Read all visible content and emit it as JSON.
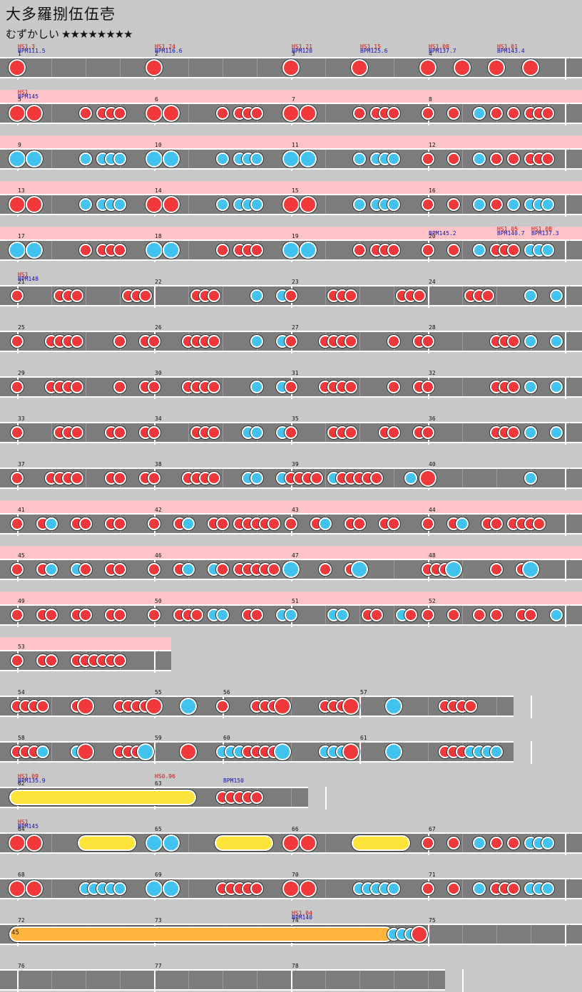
{
  "song": {
    "title": "大多羅捌伍伍壱",
    "difficulty": "むずかしい",
    "stars": "★★★★★★★★"
  },
  "colors": {
    "don": "#f0383a",
    "ka": "#41c3f0",
    "roll": "#fce43a",
    "balloon": "#ffb43c",
    "lane": "#7d7d7d",
    "gogo": "#ffc4c8",
    "bg": "#c8c8c8"
  },
  "rows": [
    {
      "gogo": false,
      "measures": [
        1,
        2,
        3,
        4
      ],
      "events": [
        {
          "beat": 0,
          "hs": "HS1.3",
          "bpm": "BPM111.5"
        },
        {
          "beat": 4,
          "hs": "HS1.24",
          "bpm": "BPM116.6"
        },
        {
          "beat": 8,
          "hs": "HS1.21",
          "bpm": "BPM120"
        },
        {
          "beat": 10,
          "hs": "HS1.15",
          "bpm": "BPM125.6"
        },
        {
          "beat": 12,
          "hs": "HS1.08",
          "bpm": "BPM137.7"
        },
        {
          "beat": 14,
          "hs": "HS1.01",
          "bpm": "BPM143.4"
        }
      ],
      "notes": "0:D 4:D 8:D 10:D 12:D 13:D 14:D 15:D"
    },
    {
      "gogo": true,
      "measures": [
        5,
        6,
        7,
        8
      ],
      "events": [
        {
          "beat": 0,
          "hs": "HS1",
          "bpm": "BPM145"
        }
      ],
      "notes": "0:D 0.5:D 2:d 2.5:d 2.75:d 3:d 4:D 4.5:D 6:d 6.5:d 6.75:d 7:d 8:D 8.5:D 10:d 10.5:d 10.75:d 11:d 12:d 12.75:d 13.5:k 14:d 14.5:d 15:d 15.25:d 15.5:d"
    },
    {
      "gogo": true,
      "measures": [
        9,
        10,
        11,
        12
      ],
      "events": [],
      "notes": "0:K 0.5:K 2:k 2.5:k 2.75:k 3:k 4:K 4.5:K 6:k 6.5:k 6.75:k 7:k 8:K 8.5:K 10:k 10.5:k 10.75:k 11:k 12:d 12.75:d 13.5:k 14:d 14.5:d 15:d 15.25:d 15.5:d"
    },
    {
      "gogo": true,
      "measures": [
        13,
        14,
        15,
        16
      ],
      "events": [],
      "notes": "0:D 0.5:D 2:k 2.5:k 2.75:k 3:k 4:D 4.5:D 6:k 6.5:k 6.75:k 7:k 8:D 8.5:D 10:k 10.5:k 10.75:k 11:k 12:d 12.75:d 13.5:k 14:d 14.5:k 15:k 15.25:k 15.5:k"
    },
    {
      "gogo": true,
      "measures": [
        17,
        18,
        19,
        20
      ],
      "events": [
        {
          "beat": 12,
          "bpm": "BPM145.2"
        },
        {
          "beat": 14,
          "hs": "HS1.05",
          "bpm": "BPM140.7"
        },
        {
          "beat": 15,
          "hs": "HS1.08",
          "bpm": "BPM137.3"
        }
      ],
      "notes": "0:K 0.5:K 2:d 2.5:d 2.75:d 3:d 4:K 4.5:K 6:d 6.5:d 6.75:d 7:d 8:K 8.5:K 10:d 10.5:d 10.75:d 11:d 12:d 12.75:d 13.5:k 14:d 14.25:d 14.5:d 15:k 15.25:k 15.5:k"
    },
    {
      "gogo": false,
      "measures": [
        21,
        22,
        23,
        24
      ],
      "events": [
        {
          "beat": 0,
          "hs": "HS1",
          "bpm": "BPM148"
        }
      ],
      "notes": "0:d 1.25:d 1.5:d 1.75:d 3.25:d 3.5:d 3.75:d 5.25:d 5.5:d 5.75:d 7:k 7.75:k 8:d 9.25:d 9.5:d 9.75:d 11.25:d 11.5:d 11.75:d 13.25:d 13.5:d 13.75:d 15:k 15.75:k"
    },
    {
      "gogo": false,
      "measures": [
        25,
        26,
        27,
        28
      ],
      "events": [],
      "notes": "0:d 1:d 1.25:d 1.5:d 1.75:d 3:d 3.75:d 4:d 5:d 5.25:d 5.5:d 5.75:d 7:k 7.75:k 8:d 9:d 9.25:d 9.5:d 9.75:d 11:d 11.75:d 12:d 14:d 14.25:d 14.5:d 15:k 15.75:k"
    },
    {
      "gogo": false,
      "measures": [
        29,
        30,
        31,
        32
      ],
      "events": [],
      "notes": "0:d 1:d 1.25:d 1.5:d 1.75:d 3:d 3.75:d 4:d 5:d 5.25:d 5.5:d 5.75:d 7:k 7.75:k 8:d 9:d 9.25:d 9.5:d 9.75:d 11:d 11.75:d 12:d 14:d 14.25:d 14.5:d 15:k 15.75:k"
    },
    {
      "gogo": false,
      "measures": [
        33,
        34,
        35,
        36
      ],
      "events": [],
      "notes": "0:d 1.25:d 1.5:d 1.75:d 2.75:d 3:d 3.75:d 4:d 5.25:d 5.5:d 5.75:d 6.75:k 7:k 7.75:k 8:d 9.25:d 9.5:d 9.75:d 10.75:d 11:d 11.75:d 12:d 14:d 14.25:d 14.5:d 15:k 15.75:k"
    },
    {
      "gogo": false,
      "measures": [
        37,
        38,
        39,
        40
      ],
      "events": [],
      "notes": "0:d 1:d 1.25:d 1.5:d 1.75:d 2.75:d 3:d 3.75:d 4:d 5:d 5.25:d 5.5:d 5.75:d 6.75:k 7:k 7.75:k 8:d 8.25:d 8.5:d 8.75:d 9.25:k 9.5:d 9.75:d 10:d 10.25:d 10.5:d 11.5:k 12:D 15:k"
    },
    {
      "gogo": true,
      "measures": [
        41,
        42,
        43,
        44
      ],
      "events": [],
      "notes": "0:d 0.75:d 1:k 1.75:d 2:d 2.75:d 3:d 4:d 4.75:d 5:k 5.75:d 6:d 6.5:d 6.75:d 7:d 7.25:d 7.5:d 8:d 8.75:d 9:k 9.75:d 10:d 10.75:d 11:d 12:d 12.75:d 13:k 13.75:d 14:d 14.5:d 14.75:d 15:d 15.25:d"
    },
    {
      "gogo": true,
      "measures": [
        45,
        46,
        47,
        48
      ],
      "events": [],
      "notes": "0:d 0.75:d 1:k 1.75:k 2:d 2.75:d 3:d 4:d 4.75:d 5:k 5.75:k 6:d 6.5:d 6.75:d 7:d 7.25:d 7.5:d 8:K 9:d 9.75:d 10:K 12:d 12.25:d 12.5:d 12.75:K 14:d 14.75:d 15:K"
    },
    {
      "gogo": true,
      "measures": [
        49,
        50,
        51,
        52
      ],
      "events": [],
      "notes": "0:d 0.75:d 1:d 1.75:d 2:d 2.75:d 3:d 4:d 4.75:d 5:d 5.25:d 5.75:k 6:k 6.75:d 7:d 7.75:k 8:k 9.25:k 9.5:k 10.25:d 10.5:d 11.25:k 11.5:d 12:d 12.75:d 13.5:d 14:d 14.75:d 15:d 15.75:k"
    },
    {
      "gogo": true,
      "measures": [
        53
      ],
      "events": [],
      "notes": "0:d 0.75:d 1:d 1.75:d 2:d 2.25:d 2.5:d 2.75:d 3:d"
    },
    {
      "gogo": false,
      "measures": [
        54,
        55,
        56,
        57
      ],
      "beats": [
        4,
        2,
        4,
        5
      ],
      "events": [],
      "notes": "0:d 0.25:d 0.5:d 0.75:d 1.75:d 2:D 3:d 3.25:d 3.5:d 3.75:d 4:D 5:K 6:d 7:d 7.25:d 7.5:d 7.75:D 9:d 9.25:d 9.5:d 9.75:D 11:K 12.5:d 12.75:d 13:d 13.25:d"
    },
    {
      "gogo": false,
      "measures": [
        58,
        59,
        60,
        61
      ],
      "beats": [
        4,
        2,
        4,
        5
      ],
      "events": [],
      "notes": "0:d 0.25:d 0.5:d 0.75:k 1.75:k 2:D 3:d 3.25:d 3.5:d 3.75:K 5:D 6:k 6.25:k 6.5:k 6.75:d 7:d 7.25:d 7.5:d 7.75:K 9:k 9.25:k 9.5:k 9.75:D 11:K 12.5:d 12.75:d 13:d 13.25:k 13.5:k 13.75:k 14:k"
    },
    {
      "gogo": false,
      "measures": [
        62,
        63
      ],
      "beats": [
        4,
        5
      ],
      "events": [
        {
          "beat": 0,
          "hs": "HS1.09",
          "bpm": "BPM135.9"
        },
        {
          "beat": 4,
          "hs": "HS0.96"
        },
        {
          "beat": 6,
          "bpm": "BPM150"
        }
      ],
      "notes": "6:d 6.25:d 6.5:d 6.75:d 7:d",
      "rolls": [
        {
          "from": 0,
          "to": 5,
          "type": "roll"
        }
      ]
    },
    {
      "gogo": false,
      "measures": [
        64,
        65,
        66,
        67
      ],
      "events": [
        {
          "beat": 0,
          "hs": "HS1",
          "bpm": "BPM145"
        }
      ],
      "notes": "0:D 0.5:D 4:K 4.5:K 8:D 8.5:D 12:d 12.75:d 13.5:k 14:d 14.5:d 15:k 15.25:k 15.5:k",
      "rolls": [
        {
          "from": 2,
          "to": 3.25,
          "type": "roll"
        },
        {
          "from": 6,
          "to": 7.25,
          "type": "roll"
        },
        {
          "from": 10,
          "to": 11.25,
          "type": "roll"
        }
      ]
    },
    {
      "gogo": false,
      "measures": [
        68,
        69,
        70,
        71
      ],
      "events": [],
      "notes": "0:D 0.5:D 2:k 2.25:k 2.5:k 2.75:k 3:k 4:K 4.5:K 6:d 6.25:d 6.5:d 6.75:d 7:d 8:D 8.5:D 10:k 10.25:k 10.5:k 10.75:k 11:k 12:d 12.75:d 13.5:k 14:d 14.25:d 14.5:d 15:k 15.25:k 15.5:k"
    },
    {
      "gogo": false,
      "measures": [
        72,
        73,
        74,
        75
      ],
      "events": [
        {
          "beat": 8,
          "hs": "HS1.04",
          "bpm": "BPM140"
        }
      ],
      "notes": "11:k 11.25:k 11.5:k 11.75:D",
      "rolls": [
        {
          "from": 0,
          "to": 10.75,
          "type": "balloon",
          "count": "45"
        }
      ]
    },
    {
      "gogo": false,
      "measures": [
        76,
        77,
        78
      ],
      "beats": [
        4,
        4,
        5
      ],
      "events": [],
      "notes": ""
    }
  ]
}
